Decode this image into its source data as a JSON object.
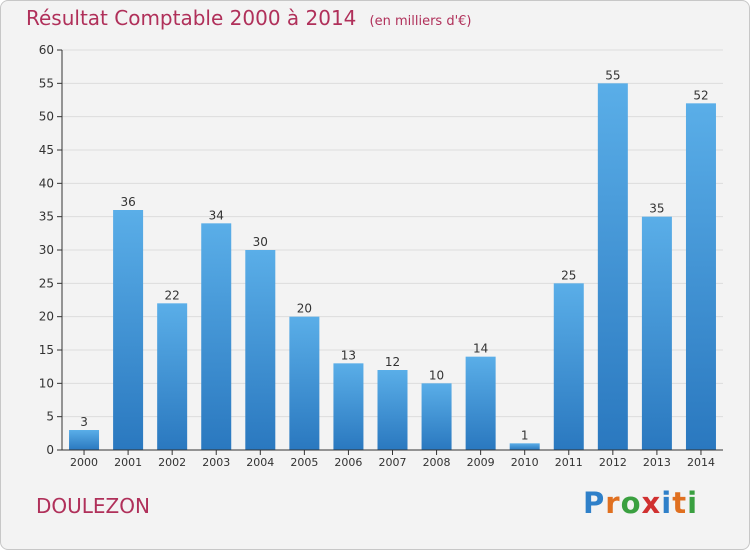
{
  "title": "Résultat Comptable 2000 à 2014",
  "subtitle": "(en milliers d'€)",
  "commune": "DOULEZON",
  "logo": {
    "letters": [
      "P",
      "r",
      "o",
      "x",
      "i",
      "t",
      "i"
    ],
    "colors": [
      "#2f80c9",
      "#e07020",
      "#3aa040",
      "#d03030",
      "#2f80c9",
      "#e07020",
      "#3aa040"
    ]
  },
  "colors": {
    "title": "#b0305a",
    "bar_light": "#5aaee8",
    "bar_dark": "#2a78bf",
    "grid": "#dcdcdc",
    "axis": "#333333"
  },
  "chart_data": {
    "type": "bar",
    "categories": [
      "2000",
      "2001",
      "2002",
      "2003",
      "2004",
      "2005",
      "2006",
      "2007",
      "2008",
      "2009",
      "2010",
      "2011",
      "2012",
      "2013",
      "2014"
    ],
    "values": [
      3,
      36,
      22,
      34,
      30,
      20,
      13,
      12,
      10,
      14,
      1,
      25,
      55,
      35,
      52
    ],
    "ylim": [
      0,
      60
    ],
    "yticks": [
      0,
      5,
      10,
      15,
      20,
      25,
      30,
      35,
      40,
      45,
      50,
      55,
      60
    ],
    "grid": true
  }
}
